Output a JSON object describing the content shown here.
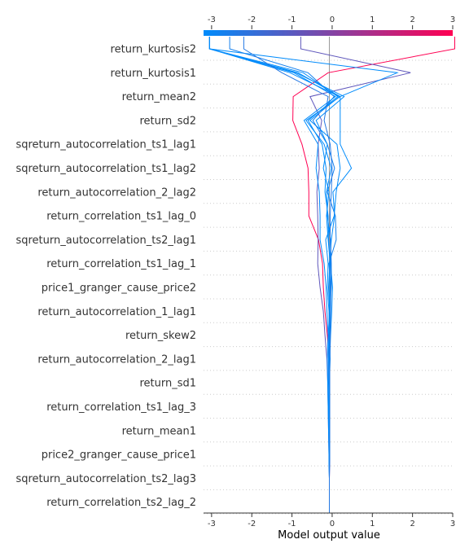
{
  "chart_data": {
    "type": "line",
    "subtype": "shap-decision-plot",
    "title": "",
    "xlabel": "Model output value",
    "ylabel": "",
    "xlim": [
      -3.2,
      3.0
    ],
    "xticks": [
      -3,
      -2,
      -1,
      0,
      1,
      2,
      3
    ],
    "base_value": -0.07,
    "colorbar": {
      "colors": [
        "#008bfb",
        "#ff0052"
      ],
      "ticks": [
        -3,
        -2,
        -1,
        0,
        1,
        2,
        3
      ]
    },
    "features": [
      "return_correlation_ts2_lag_2",
      "sqreturn_autocorrelation_ts2_lag3",
      "price2_granger_cause_price1",
      "return_mean1",
      "return_correlation_ts1_lag_3",
      "return_sd1",
      "return_autocorrelation_2_lag1",
      "return_skew2",
      "return_autocorrelation_1_lag1",
      "price1_granger_cause_price2",
      "return_correlation_ts1_lag_1",
      "sqreturn_autocorrelation_ts2_lag1",
      "return_correlation_ts1_lag_0",
      "return_autocorrelation_2_lag2",
      "sqreturn_autocorrelation_ts1_lag2",
      "sqreturn_autocorrelation_ts1_lag1",
      "return_sd2",
      "return_mean2",
      "return_kurtosis1",
      "return_kurtosis2"
    ],
    "series": [
      {
        "values": [
          -0.07,
          -0.07,
          -0.07,
          -0.06,
          -0.06,
          -0.07,
          -0.07,
          -0.08,
          -0.12,
          -0.18,
          -0.22,
          -0.24,
          -0.34,
          -0.58,
          -0.58,
          -0.6,
          -0.75,
          -0.98,
          -0.97,
          -0.1,
          3.05
        ]
      },
      {
        "values": [
          -0.07,
          -0.07,
          -0.07,
          -0.08,
          -0.09,
          -0.1,
          -0.11,
          -0.13,
          -0.18,
          -0.22,
          -0.3,
          -0.36,
          -0.35,
          -0.36,
          -0.38,
          -0.32,
          -0.35,
          -0.26,
          -0.55,
          1.95,
          -0.78
        ]
      },
      {
        "values": [
          -0.07,
          -0.07,
          -0.07,
          -0.08,
          -0.09,
          -0.1,
          -0.11,
          -0.12,
          -0.1,
          -0.06,
          -0.09,
          -0.06,
          -0.02,
          0.06,
          0.02,
          0.48,
          0.2,
          0.2,
          0.2,
          1.62,
          -3.05
        ]
      },
      {
        "values": [
          -0.07,
          -0.07,
          -0.07,
          -0.06,
          -0.06,
          -0.06,
          -0.07,
          -0.05,
          -0.07,
          -0.08,
          -0.12,
          -0.1,
          -0.16,
          0.05,
          0.1,
          0.2,
          0.12,
          -0.55,
          0.18,
          -1.05,
          -3.05
        ]
      },
      {
        "values": [
          -0.07,
          -0.07,
          -0.07,
          -0.07,
          -0.08,
          -0.06,
          -0.08,
          -0.07,
          -0.05,
          -0.05,
          -0.04,
          -0.08,
          0.1,
          0.08,
          -0.12,
          0.06,
          -0.12,
          -0.48,
          0.05,
          -0.6,
          -2.55
        ]
      },
      {
        "values": [
          -0.07,
          -0.07,
          -0.07,
          -0.08,
          -0.06,
          -0.08,
          -0.07,
          -0.06,
          -0.04,
          -0.01,
          0.01,
          -0.04,
          -0.09,
          -0.1,
          -0.18,
          -0.15,
          -0.25,
          -0.6,
          0.14,
          -0.72,
          -3.05
        ]
      },
      {
        "values": [
          -0.07,
          -0.07,
          -0.07,
          -0.07,
          -0.07,
          -0.08,
          -0.07,
          -0.06,
          -0.06,
          -0.06,
          -0.02,
          -0.02,
          -0.04,
          -0.12,
          -0.14,
          -0.02,
          -0.2,
          -0.65,
          0.2,
          -0.85,
          -3.05
        ]
      },
      {
        "values": [
          -0.07,
          -0.07,
          -0.07,
          -0.08,
          -0.08,
          -0.09,
          -0.1,
          -0.09,
          -0.1,
          -0.13,
          -0.15,
          -0.2,
          -0.3,
          -0.3,
          -0.32,
          -0.4,
          -0.35,
          -0.7,
          0.08,
          -0.95,
          -3.05
        ]
      },
      {
        "values": [
          -0.07,
          -0.07,
          -0.07,
          -0.07,
          -0.07,
          -0.07,
          -0.07,
          -0.07,
          -0.08,
          -0.07,
          -0.06,
          -0.05,
          -0.1,
          -0.14,
          -0.08,
          -0.22,
          -0.12,
          -0.4,
          0.3,
          -0.9,
          -3.05
        ]
      },
      {
        "values": [
          -0.07,
          -0.07,
          -0.07,
          -0.06,
          -0.06,
          -0.06,
          -0.06,
          -0.06,
          -0.05,
          -0.04,
          -0.03,
          -0.03,
          -0.05,
          -0.05,
          -0.02,
          0.0,
          -0.05,
          -0.2,
          -0.1,
          -1.25,
          -2.2
        ]
      }
    ]
  }
}
